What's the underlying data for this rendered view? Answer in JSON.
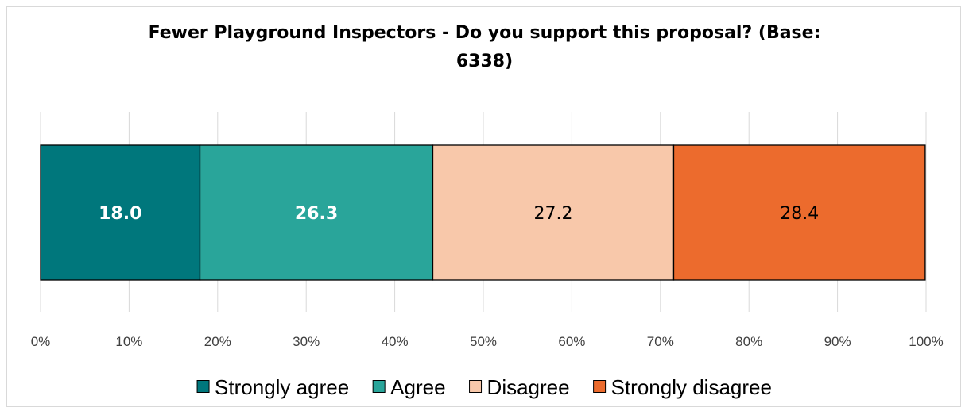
{
  "chart_data": {
    "type": "bar",
    "orientation": "horizontal-stacked-100",
    "title": "Fewer Playground Inspectors -  Do you support this proposal? (Base: 6338)",
    "title_lines": [
      "Fewer Playground Inspectors -  Do you support this proposal? (Base:",
      "6338)"
    ],
    "categories": [
      ""
    ],
    "series": [
      {
        "name": "Strongly agree",
        "values": [
          18.0
        ],
        "label": "18.0",
        "color": "#00777c",
        "label_color": "#ffffff",
        "label_bold": true
      },
      {
        "name": "Agree",
        "values": [
          26.3
        ],
        "label": "26.3",
        "color": "#29a59a",
        "label_color": "#ffffff",
        "label_bold": true
      },
      {
        "name": "Disagree",
        "values": [
          27.2
        ],
        "label": "27.2",
        "color": "#f8c8aa",
        "label_color": "#000000",
        "label_bold": false
      },
      {
        "name": "Strongly disagree",
        "values": [
          28.4
        ],
        "label": "28.4",
        "color": "#ec6b2d",
        "label_color": "#000000",
        "label_bold": false
      }
    ],
    "x_ticks": [
      "0%",
      "10%",
      "20%",
      "30%",
      "40%",
      "50%",
      "60%",
      "70%",
      "80%",
      "90%",
      "100%"
    ],
    "xlim": [
      0,
      100
    ],
    "grid": true,
    "legend_position": "bottom"
  }
}
